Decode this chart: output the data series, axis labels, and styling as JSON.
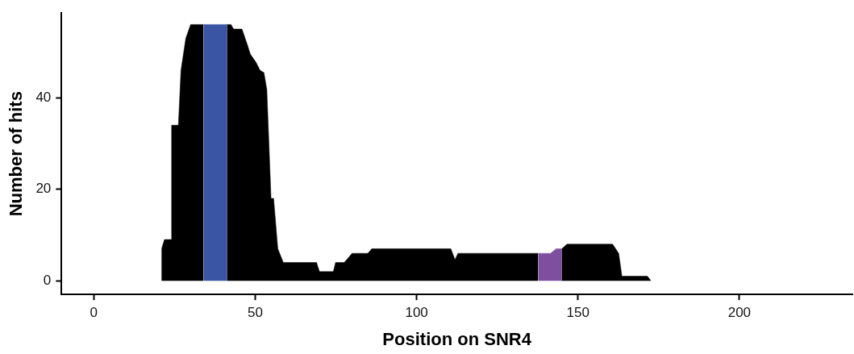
{
  "chart_data": {
    "type": "area",
    "xlabel": "Position on SNR4",
    "ylabel": "Number of hits",
    "xlim": [
      -10,
      235
    ],
    "ylim": [
      -3,
      58.5
    ],
    "xticks": [
      0,
      50,
      100,
      150,
      200
    ],
    "yticks": [
      0,
      20,
      40
    ],
    "grid": false,
    "legend": false,
    "series": [
      {
        "color": "#000000",
        "x": [
          21,
          21,
          21.9,
          24,
          24.1,
          25,
          26.2,
          27,
          28.5,
          30,
          33.9,
          33.95,
          41.25,
          41.3,
          42.5,
          43.3,
          45.9,
          47.6,
          48.5,
          50.2,
          51.5,
          52.7,
          53.6,
          54.9,
          55.7,
          57,
          58.7,
          69,
          69.9,
          74.2,
          74.9,
          77.6,
          80,
          84.9,
          86.1,
          110.6,
          111.9,
          112.8,
          137.7,
          137.75,
          144.95,
          145,
          146.6,
          160.7,
          162.6,
          163.6,
          171.5,
          172.6
        ],
        "values": [
          0,
          7,
          9,
          9,
          34,
          34,
          34,
          46,
          53,
          56,
          56,
          null,
          null,
          56,
          56,
          55,
          55,
          51.5,
          49.5,
          47.8,
          46,
          45.5,
          41.8,
          18,
          18,
          7,
          4,
          4,
          2,
          2,
          4,
          4,
          6,
          6,
          7,
          7,
          4.6,
          6,
          6,
          null,
          null,
          7,
          8,
          8,
          6,
          1,
          1,
          0
        ]
      },
      {
        "color": "#3a55a4",
        "x": [
          34,
          34,
          41.2,
          41.2
        ],
        "values": [
          0,
          56,
          56,
          0
        ]
      },
      {
        "color": "#7e4f9e",
        "x": [
          137.8,
          137.8,
          141.5,
          143.2,
          144.9,
          144.9
        ],
        "values": [
          0,
          6,
          6,
          7,
          7,
          0
        ]
      }
    ]
  }
}
